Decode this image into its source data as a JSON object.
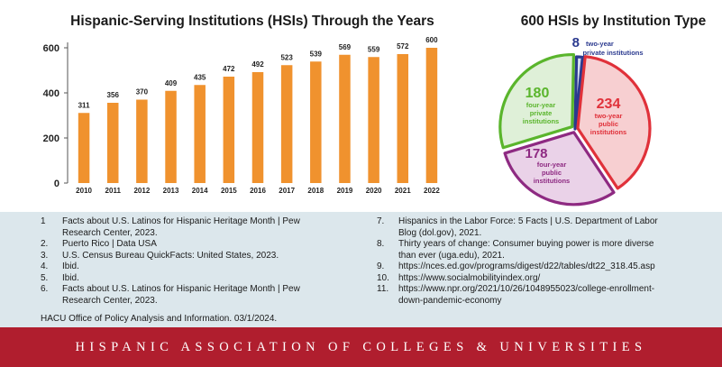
{
  "chart_data": [
    {
      "type": "bar",
      "title": "Hispanic-Serving Institutions (HSIs) Through the Years",
      "categories": [
        "2010",
        "2011",
        "2012",
        "2013",
        "2014",
        "2015",
        "2016",
        "2017",
        "2018",
        "2019",
        "2020",
        "2021",
        "2022"
      ],
      "values": [
        311,
        356,
        370,
        409,
        435,
        472,
        492,
        523,
        539,
        569,
        559,
        572,
        600
      ],
      "ylim": [
        0,
        600
      ],
      "yticks": [
        0,
        200,
        400,
        600
      ],
      "xlabel": "",
      "ylabel": "",
      "bar_color": "#f0922e",
      "grid": false
    },
    {
      "type": "pie",
      "title": "600 HSIs by Institution Type",
      "slices": [
        {
          "value": 8,
          "value_label": "8",
          "label": "two-year private institutions",
          "fill": "#d6e0f0",
          "stroke": "#2b3a8f"
        },
        {
          "value": 234,
          "value_label": "234",
          "label": "two-year public institutions",
          "fill": "#f7cfd1",
          "stroke": "#e0313a"
        },
        {
          "value": 178,
          "value_label": "178",
          "label": "four-year public institutions",
          "fill": "#ead2e8",
          "stroke": "#8e2a82"
        },
        {
          "value": 180,
          "value_label": "180",
          "label": "four-year private institutions",
          "fill": "#dff0d8",
          "stroke": "#5ab52c"
        }
      ]
    }
  ],
  "notes_left": [
    {
      "num": "1",
      "lines": [
        "Facts about U.S. Latinos for Hispanic Heritage Month | Pew",
        "Research Center, 2023."
      ]
    },
    {
      "num": "2.",
      "lines": [
        "Puerto Rico | Data USA"
      ]
    },
    {
      "num": "3.",
      "lines": [
        "U.S. Census Bureau QuickFacts: United States, 2023."
      ]
    },
    {
      "num": "4.",
      "lines": [
        "Ibid."
      ]
    },
    {
      "num": "5.",
      "lines": [
        "Ibid."
      ]
    },
    {
      "num": "6.",
      "lines": [
        "Facts about U.S. Latinos for Hispanic Heritage Month | Pew",
        "Research Center, 2023."
      ]
    }
  ],
  "notes_right": [
    {
      "num": "7.",
      "lines": [
        "Hispanics in the Labor Force: 5 Facts | U.S. Department of Labor",
        "Blog (dol.gov), 2021."
      ]
    },
    {
      "num": "8.",
      "lines": [
        "Thirty years of change: Consumer buying power is more diverse",
        "than ever (uga.edu), 2021."
      ]
    },
    {
      "num": "9.",
      "lines": [
        "https://nces.ed.gov/programs/digest/d22/tables/dt22_318.45.asp"
      ]
    },
    {
      "num": "10.",
      "lines": [
        "https://www.socialmobilityindex.org/"
      ]
    },
    {
      "num": "11.",
      "lines": [
        "https://www.npr.org/2021/10/26/1048955023/college-enrollment-",
        "down-pandemic-economy"
      ]
    }
  ],
  "footer_note": "HACU Office of Policy Analysis and Information. 03/1/2024.",
  "banner": {
    "text": "HISPANIC ASSOCIATION OF COLLEGES & UNIVERSITIES",
    "color": "#b01e2e"
  },
  "notes_bg": "#dce7ec"
}
